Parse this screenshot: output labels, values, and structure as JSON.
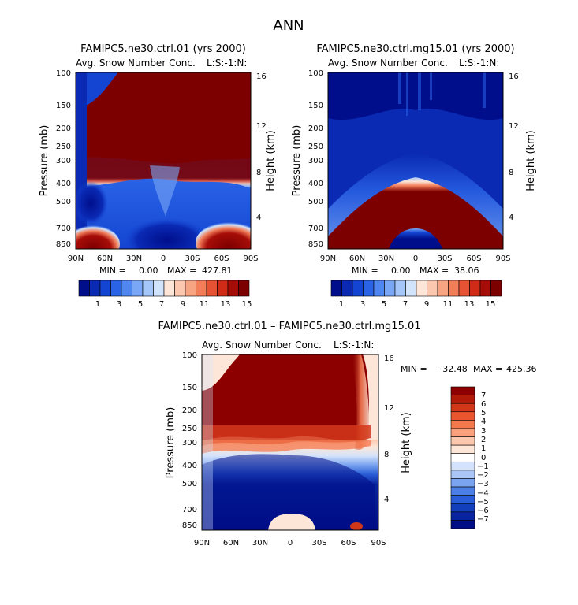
{
  "figure_title": "ANN",
  "chart_data": [
    {
      "type": "heatmap",
      "title": "FAMIPC5.ne30.ctrl.01 (yrs 2000)",
      "subtitle": "Avg. Snow Number Conc.",
      "level_tag": "L:S:-1:N:",
      "ylabel": "Pressure (mb)",
      "ylabel_right": "Height (km)",
      "pressure_ticks": [
        "100",
        "150",
        "200",
        "250",
        "300",
        "400",
        "500",
        "700",
        "850"
      ],
      "height_ticks": [
        "16",
        "12",
        "8",
        "4"
      ],
      "lat_ticks": [
        "90N",
        "60N",
        "30N",
        "0",
        "30S",
        "60S",
        "90S"
      ],
      "stats": {
        "min_label": "MIN =",
        "min": "0.00",
        "max_label": "MAX =",
        "max": "427.81"
      },
      "colorbar": {
        "orientation": "horizontal",
        "labels": [
          "1",
          "3",
          "5",
          "7",
          "9",
          "11",
          "13",
          "15"
        ],
        "colors": [
          "#000e8c",
          "#0a2ab4",
          "#1445d2",
          "#2a63e6",
          "#4f86ef",
          "#79a7f5",
          "#a5c6f9",
          "#d2e3fc",
          "#fde5d8",
          "#fbc7ae",
          "#f7a483",
          "#f17d59",
          "#e65234",
          "#cf2b17",
          "#a60d08",
          "#7d0000"
        ]
      }
    },
    {
      "type": "heatmap",
      "title": "FAMIPC5.ne30.ctrl.mg15.01 (yrs 2000)",
      "subtitle": "Avg. Snow Number Conc.",
      "level_tag": "L:S:-1:N:",
      "ylabel": "Pressure (mb)",
      "ylabel_right": "Height (km)",
      "pressure_ticks": [
        "100",
        "150",
        "200",
        "250",
        "300",
        "400",
        "500",
        "700",
        "850"
      ],
      "height_ticks": [
        "16",
        "12",
        "8",
        "4"
      ],
      "lat_ticks": [
        "90N",
        "60N",
        "30N",
        "0",
        "30S",
        "60S",
        "90S"
      ],
      "stats": {
        "min_label": "MIN =",
        "min": "0.00",
        "max_label": "MAX =",
        "max": "38.06"
      },
      "colorbar": {
        "orientation": "horizontal",
        "labels": [
          "1",
          "3",
          "5",
          "7",
          "9",
          "11",
          "13",
          "15"
        ],
        "colors": [
          "#000e8c",
          "#0a2ab4",
          "#1445d2",
          "#2a63e6",
          "#4f86ef",
          "#79a7f5",
          "#a5c6f9",
          "#d2e3fc",
          "#fde5d8",
          "#fbc7ae",
          "#f7a483",
          "#f17d59",
          "#e65234",
          "#cf2b17",
          "#a60d08",
          "#7d0000"
        ]
      }
    },
    {
      "type": "heatmap",
      "title": "FAMIPC5.ne30.ctrl.01 – FAMIPC5.ne30.ctrl.mg15.01",
      "subtitle": "Avg. Snow Number Conc.",
      "level_tag": "L:S:-1:N:",
      "ylabel": "Pressure (mb)",
      "ylabel_right": "Height (km)",
      "pressure_ticks": [
        "100",
        "150",
        "200",
        "250",
        "300",
        "400",
        "500",
        "700",
        "850"
      ],
      "height_ticks": [
        "16",
        "12",
        "8",
        "4"
      ],
      "lat_ticks": [
        "90N",
        "60N",
        "30N",
        "0",
        "30S",
        "60S",
        "90S"
      ],
      "stats": {
        "min_label": "MIN =",
        "min": "−32.48",
        "max_label": "MAX =",
        "max": "425.36"
      },
      "colorbar": {
        "orientation": "vertical",
        "labels": [
          "7",
          "6",
          "5",
          "4",
          "3",
          "2",
          "1",
          "0",
          "−1",
          "−2",
          "−3",
          "−4",
          "−5",
          "−6",
          "−7"
        ],
        "colors": [
          "#8c0000",
          "#b11a08",
          "#d2371a",
          "#e9552f",
          "#f3784e",
          "#f9a07c",
          "#fcc8ad",
          "#fde6d8",
          "#ffffff",
          "#d4e3fb",
          "#a8c5f5",
          "#7aa4ef",
          "#4d80e6",
          "#2a5ed8",
          "#1240bc",
          "#07249e",
          "#000d86"
        ]
      }
    }
  ]
}
